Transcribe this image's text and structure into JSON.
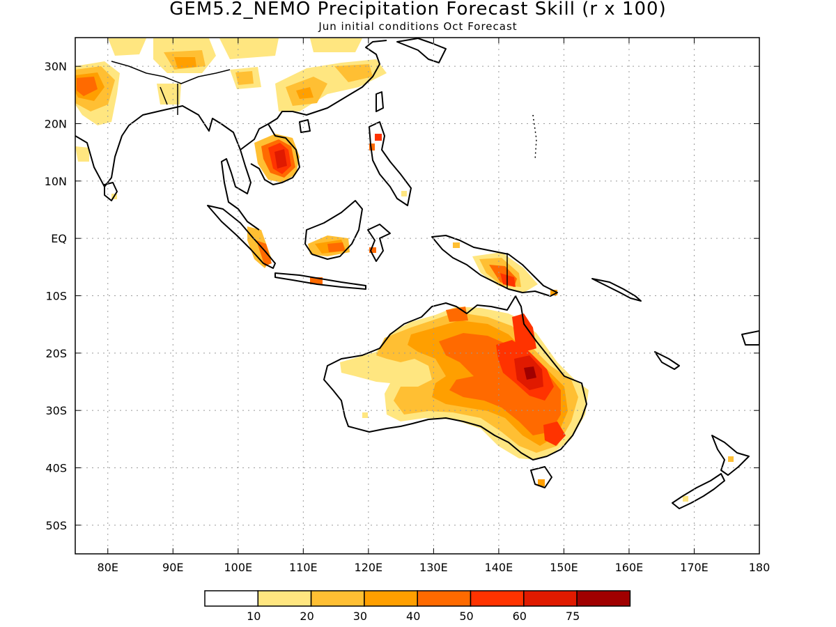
{
  "title": "GEM5.2_NEMO Precipitation Forecast Skill (r x 100)",
  "subtitle": "Jun initial conditions  Oct Forecast",
  "map": {
    "lon_range": [
      75,
      180
    ],
    "lat_range": [
      -55,
      35
    ],
    "lat_ticks": [
      {
        "value": 30,
        "label": "30N"
      },
      {
        "value": 20,
        "label": "20N"
      },
      {
        "value": 10,
        "label": "10N"
      },
      {
        "value": 0,
        "label": "EQ"
      },
      {
        "value": -10,
        "label": "10S"
      },
      {
        "value": -20,
        "label": "20S"
      },
      {
        "value": -30,
        "label": "30S"
      },
      {
        "value": -40,
        "label": "40S"
      },
      {
        "value": -50,
        "label": "50S"
      }
    ],
    "lon_ticks": [
      {
        "value": 80,
        "label": "80E"
      },
      {
        "value": 90,
        "label": "90E"
      },
      {
        "value": 100,
        "label": "100E"
      },
      {
        "value": 110,
        "label": "110E"
      },
      {
        "value": 120,
        "label": "120E"
      },
      {
        "value": 130,
        "label": "130E"
      },
      {
        "value": 140,
        "label": "140E"
      },
      {
        "value": 150,
        "label": "150E"
      },
      {
        "value": 160,
        "label": "160E"
      },
      {
        "value": 170,
        "label": "170E"
      },
      {
        "value": 180,
        "label": "180"
      }
    ],
    "grid": "dotted"
  },
  "colorbar": {
    "colors": [
      "#ffffff",
      "#ffe680",
      "#ffbf33",
      "#ff9f00",
      "#ff6a00",
      "#ff3300",
      "#e01a00",
      "#a00000"
    ],
    "labels": [
      "10",
      "20",
      "30",
      "40",
      "50",
      "60",
      "75"
    ]
  }
}
